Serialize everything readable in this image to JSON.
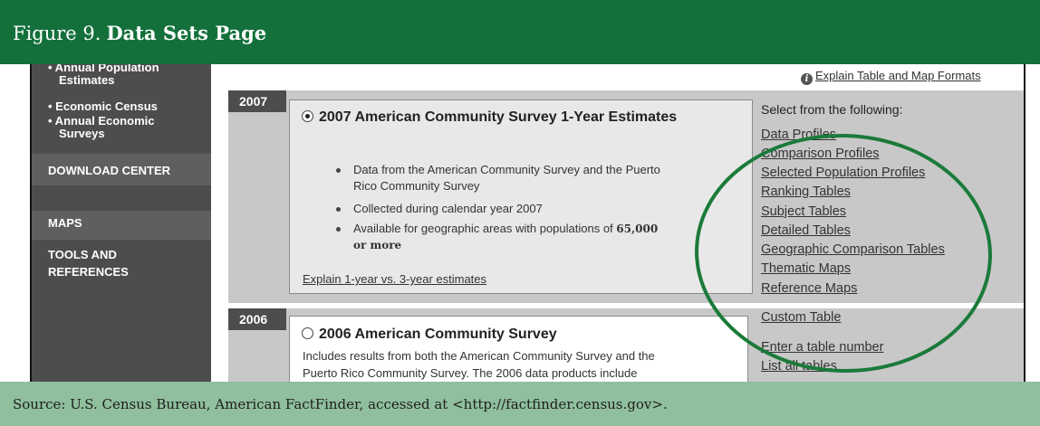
{
  "figure": {
    "number": "Figure 9.",
    "title": "Data Sets Page",
    "source": "Source: U.S. Census Bureau, American FactFinder, accessed at <http://factfinder.census.gov>."
  },
  "sidebar": {
    "items": [
      {
        "line1": "• Annual Population",
        "line2": "Estimates"
      },
      {
        "line1": "• Economic Census"
      },
      {
        "line1": "• Annual Economic",
        "line2": "Surveys"
      }
    ],
    "sections": [
      "DOWNLOAD CENTER",
      "MAPS",
      "TOOLS AND",
      "REFERENCES"
    ]
  },
  "explain_formats": "Explain Table and Map Formats",
  "panel_2007": {
    "year": "2007",
    "title": "2007 American Community Survey 1-Year Estimates",
    "bullets": [
      {
        "line1": "Data from the American Community Survey and the Puerto",
        "line2": "Rico Community Survey"
      },
      {
        "line1": "Collected during calendar year 2007"
      },
      {
        "line1": "Available for geographic areas with populations of",
        "strong1": "65,000",
        "strong2": "or more"
      }
    ],
    "explain_link": "Explain 1-year vs. 3-year estimates"
  },
  "panel_2006": {
    "year": "2006",
    "title": "2006 American Community Survey",
    "text_line1": "Includes results from both the American Community Survey and the",
    "text_line2": "Puerto Rico Community Survey. The 2006 data products include"
  },
  "links": {
    "heading": "Select from the following:",
    "items": [
      "Data Profiles",
      "Comparison Profiles",
      "Selected Population Profiles",
      "Ranking Tables",
      "Subject Tables",
      "Detailed Tables",
      "Geographic Comparison Tables",
      "Thematic Maps",
      "Reference Maps"
    ],
    "custom_table": "Custom Table",
    "enter_table": "Enter a table number",
    "list_all": "List all tables"
  },
  "colors": {
    "header_green": "#14703b",
    "source_green": "#8fbf9c",
    "highlight_ellipse": "#1b7a3a",
    "sidebar_gray": "#4d4d4d"
  }
}
